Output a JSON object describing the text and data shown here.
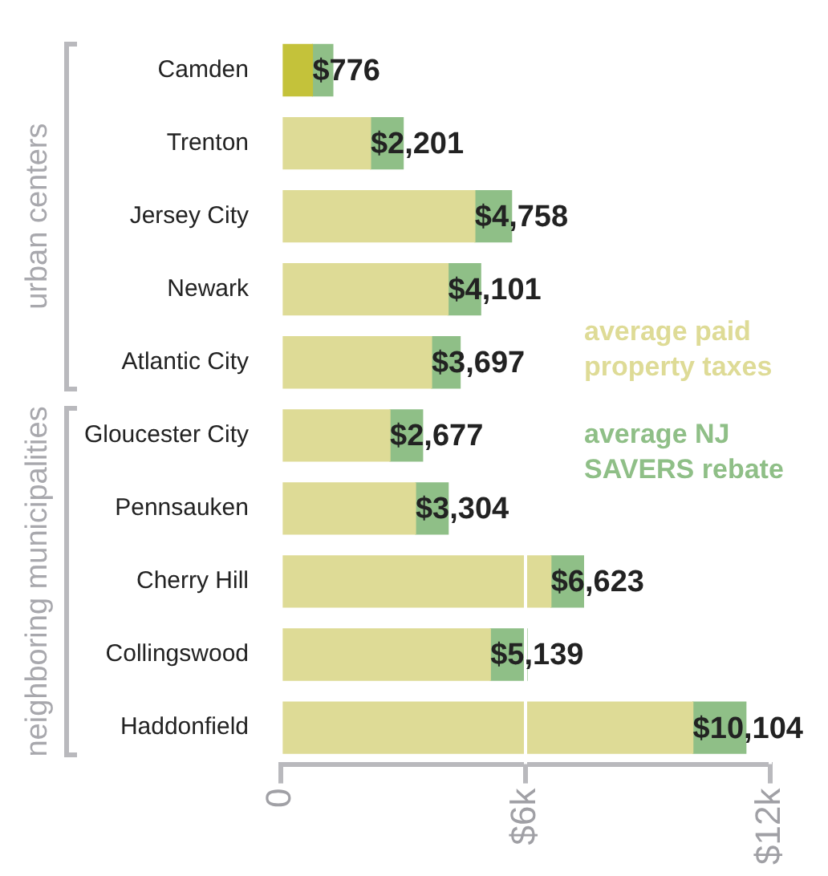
{
  "chart_data": {
    "type": "bar",
    "orientation": "horizontal",
    "stacked": true,
    "categories": [
      "Camden",
      "Trenton",
      "Jersey City",
      "Newark",
      "Atlantic City",
      "Gloucester City",
      "Pennsauken",
      "Cherry Hill",
      "Collingswood",
      "Haddonfield"
    ],
    "series": [
      {
        "name": "average paid property taxes",
        "color": "#dedb96",
        "colors": [
          "#c4c23a",
          "#dedb96",
          "#dedb96",
          "#dedb96",
          "#dedb96",
          "#dedb96",
          "#dedb96",
          "#dedb96",
          "#dedb96",
          "#dedb96"
        ],
        "values": [
          776,
          2201,
          4758,
          4101,
          3697,
          2677,
          3304,
          6623,
          5139,
          10104
        ],
        "value_labels": [
          "$776",
          "$2,201",
          "$4,758",
          "$4,101",
          "$3,697",
          "$2,677",
          "$3,304",
          "$6,623",
          "$5,139",
          "$10,104"
        ]
      },
      {
        "name": "average NJ SAVERS rebate",
        "color": "#8fbf87",
        "values": [
          500,
          800,
          900,
          800,
          700,
          800,
          800,
          800,
          900,
          1300
        ]
      }
    ],
    "xlim": [
      0,
      12000
    ],
    "xticks": [
      0,
      {
        "value": 6000,
        "label": "$6k"
      },
      {
        "value": 12000,
        "label": "$12k"
      }
    ],
    "grid": "x",
    "legend": "right",
    "annotations": [
      "urban centers",
      "neighboring municipalities"
    ]
  }
}
